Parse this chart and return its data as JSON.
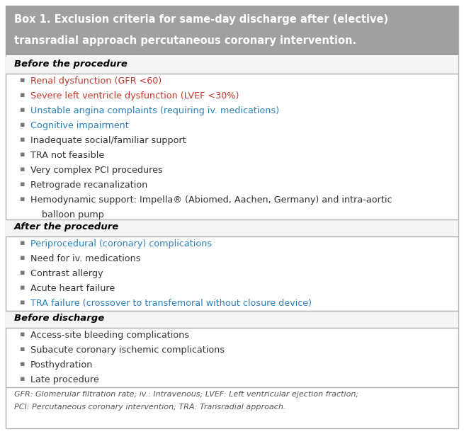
{
  "title_line1": "Box 1. Exclusion criteria for same-day discharge after (elective)",
  "title_line2": "transradial approach percutaneous coronary intervention.",
  "title_bg_color": "#a0a0a0",
  "title_text_color": "#ffffff",
  "body_bg_color": "#ffffff",
  "border_color": "#b0b0b0",
  "section_header_color": "#000000",
  "bullet_color": "#777777",
  "sections": [
    {
      "header": "Before the procedure",
      "items": [
        "Renal dysfunction (GFR <60)",
        "Severe left ventricle dysfunction (LVEF <30%)",
        "Unstable angina complaints (requiring iv. medications)",
        "Cognitive impairment",
        "Inadequate social/familiar support",
        "TRA not feasible",
        "Very complex PCI procedures",
        "Retrograde recanalization",
        "Hemodynamic support: Impella® (Abiomed, Aachen, Germany) and intra-aortic"
      ],
      "items_extra": [
        "",
        "",
        "",
        "",
        "",
        "",
        "",
        "",
        "    balloon pump"
      ],
      "item_colors": [
        "#c0392b",
        "#c0392b",
        "#2980b9",
        "#2980b9",
        "#333333",
        "#333333",
        "#333333",
        "#333333",
        "#333333"
      ]
    },
    {
      "header": "After the procedure",
      "items": [
        "Periprocedural (coronary) complications",
        "Need for iv. medications",
        "Contrast allergy",
        "Acute heart failure",
        "TRA failure (crossover to transfemoral without closure device)"
      ],
      "items_extra": [
        "",
        "",
        "",
        "",
        ""
      ],
      "item_colors": [
        "#2980b9",
        "#333333",
        "#333333",
        "#333333",
        "#2980b9"
      ]
    },
    {
      "header": "Before discharge",
      "items": [
        "Access-site bleeding complications",
        "Subacute coronary ischemic complications",
        "Posthydration",
        "Late procedure"
      ],
      "items_extra": [
        "",
        "",
        "",
        ""
      ],
      "item_colors": [
        "#333333",
        "#333333",
        "#333333",
        "#333333"
      ]
    }
  ],
  "footnote_line1": "GFR: Glomerular filtration rate; iv.: Intravenous; LVEF: Left ventricular ejection fraction;",
  "footnote_line2": "PCI: Percutaneous coronary intervention; TRA: Transradial approach.",
  "footnote_color": "#555555"
}
